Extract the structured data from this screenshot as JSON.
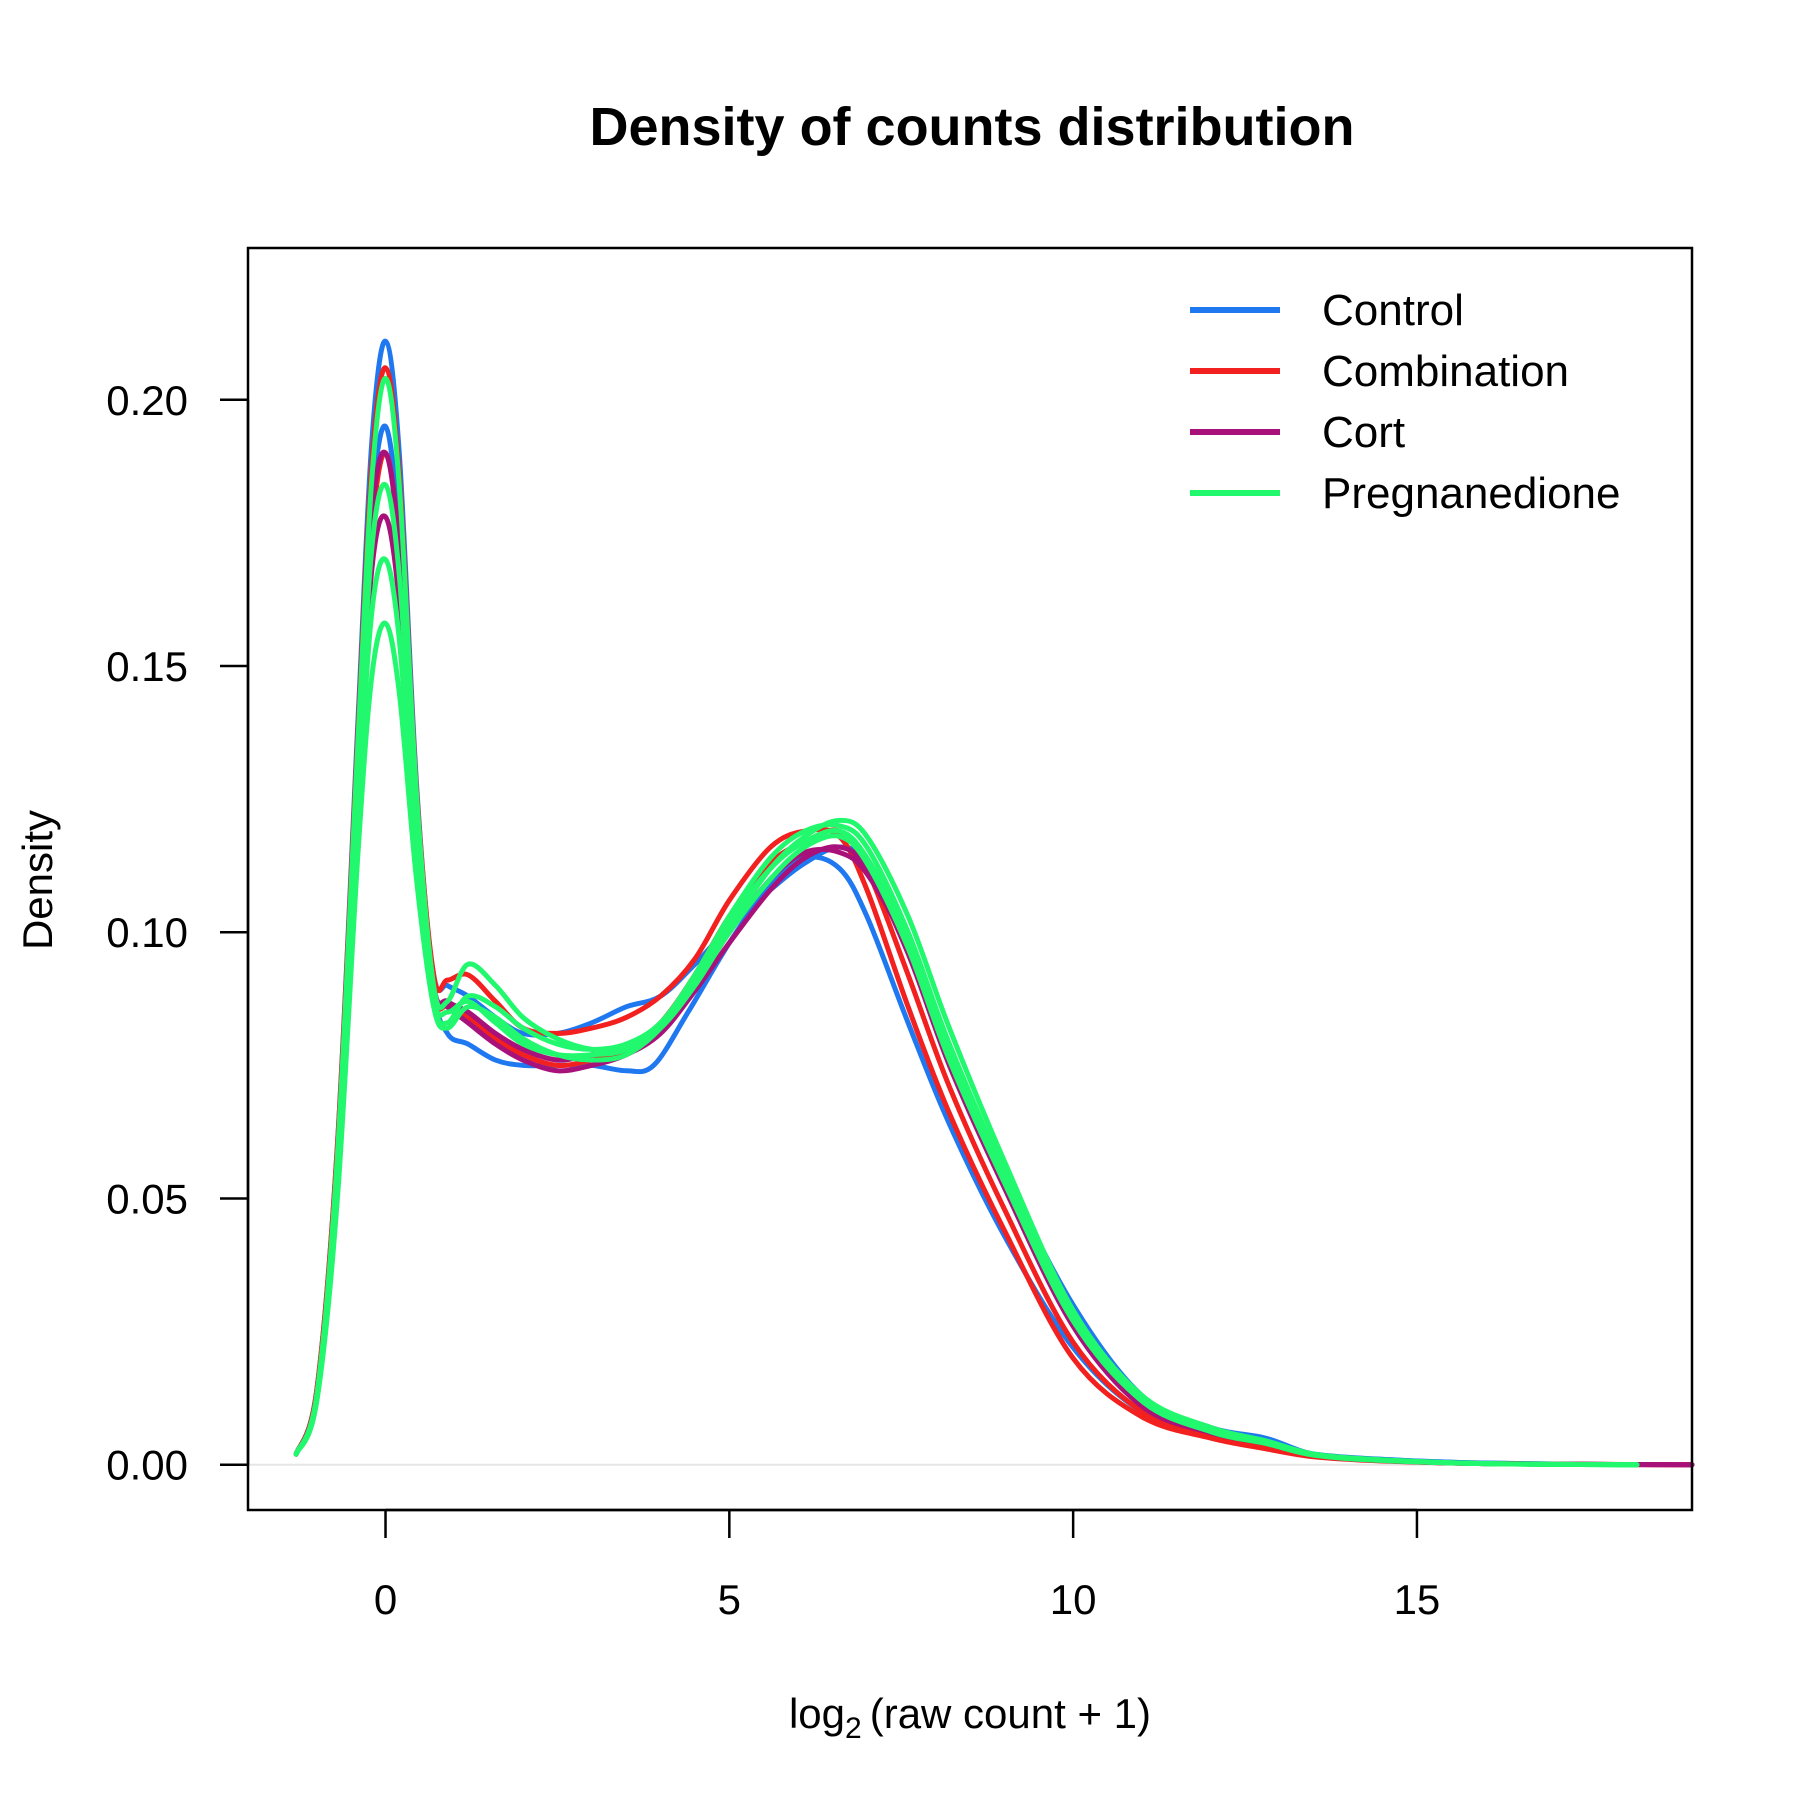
{
  "chart_data": {
    "type": "line",
    "title": "Density of counts distribution",
    "ylabel": "Density",
    "xlabel": {
      "prefix": "log",
      "subscript": "2",
      "expr": "(raw count + 1)"
    },
    "xlim": [
      -2,
      19
    ],
    "ylim": [
      -0.0085,
      0.2285
    ],
    "x_ticks": [
      0,
      5,
      10,
      15
    ],
    "x_tick_labels": [
      "0",
      "5",
      "10",
      "15"
    ],
    "y_ticks": [
      0,
      0.05,
      0.1,
      0.15,
      0.2
    ],
    "y_tick_labels": [
      "0.00",
      "0.05",
      "0.10",
      "0.15",
      "0.20"
    ],
    "grid": false,
    "legend_position": "top-right",
    "legend": [
      {
        "label": "Control",
        "color": "#1F78F0"
      },
      {
        "label": "Combination",
        "color": "#F2201E"
      },
      {
        "label": "Cort",
        "color": "#A8107A"
      },
      {
        "label": "Pregnanedione",
        "color": "#22F86E"
      }
    ],
    "series": [
      {
        "group": "Control",
        "color": "#1F78F0",
        "x": [
          -1.3,
          -1.0,
          -0.7,
          -0.4,
          -0.2,
          0,
          0.2,
          0.45,
          0.7,
          0.9,
          1.2,
          1.6,
          2.0,
          2.5,
          3.0,
          3.5,
          3.9,
          4.4,
          5.0,
          5.6,
          6.1,
          6.6,
          7.0,
          7.6,
          8.2,
          9.0,
          10.0,
          11.0,
          12.0,
          12.8,
          13.5,
          14.5,
          16.0,
          18.2
        ],
        "y": [
          0.002,
          0.014,
          0.06,
          0.14,
          0.192,
          0.211,
          0.19,
          0.128,
          0.09,
          0.081,
          0.079,
          0.076,
          0.075,
          0.075,
          0.075,
          0.074,
          0.075,
          0.085,
          0.098,
          0.109,
          0.114,
          0.112,
          0.103,
          0.083,
          0.064,
          0.043,
          0.022,
          0.01,
          0.006,
          0.004,
          0.002,
          0.001,
          0.0003,
          0
        ]
      },
      {
        "group": "Control",
        "color": "#1F78F0",
        "x": [
          -1.3,
          -1.0,
          -0.7,
          -0.4,
          -0.2,
          0,
          0.2,
          0.45,
          0.7,
          0.9,
          1.2,
          1.6,
          2.0,
          2.5,
          3.0,
          3.5,
          4.0,
          4.5,
          5.0,
          5.6,
          6.1,
          6.6,
          7.0,
          7.6,
          8.2,
          9.0,
          10.0,
          11.0,
          12.0,
          12.8,
          13.5,
          14.5,
          16.0,
          18.2
        ],
        "y": [
          0.002,
          0.013,
          0.058,
          0.135,
          0.18,
          0.195,
          0.175,
          0.124,
          0.092,
          0.09,
          0.088,
          0.084,
          0.081,
          0.081,
          0.083,
          0.086,
          0.088,
          0.094,
          0.101,
          0.108,
          0.113,
          0.116,
          0.113,
          0.098,
          0.078,
          0.055,
          0.03,
          0.013,
          0.007,
          0.005,
          0.002,
          0.001,
          0.0003,
          0
        ]
      },
      {
        "group": "Combination",
        "color": "#F2201E",
        "x": [
          -1.3,
          -1.0,
          -0.7,
          -0.4,
          -0.2,
          0,
          0.2,
          0.45,
          0.7,
          0.9,
          1.2,
          1.6,
          2.0,
          2.5,
          3.0,
          3.5,
          4.0,
          4.5,
          5.0,
          5.6,
          6.1,
          6.6,
          7.0,
          7.6,
          8.2,
          9.0,
          10.0,
          11.0,
          12.0,
          12.8,
          13.5,
          14.5,
          16.0,
          19.0
        ],
        "y": [
          0.002,
          0.014,
          0.06,
          0.138,
          0.188,
          0.206,
          0.186,
          0.127,
          0.092,
          0.091,
          0.092,
          0.087,
          0.082,
          0.081,
          0.082,
          0.084,
          0.088,
          0.095,
          0.106,
          0.116,
          0.119,
          0.118,
          0.108,
          0.086,
          0.066,
          0.044,
          0.02,
          0.009,
          0.005,
          0.003,
          0.0015,
          0.0007,
          0.0002,
          0
        ]
      },
      {
        "group": "Combination",
        "color": "#F2201E",
        "x": [
          -1.3,
          -1.0,
          -0.7,
          -0.4,
          -0.2,
          0,
          0.2,
          0.45,
          0.7,
          0.9,
          1.2,
          1.6,
          2.0,
          2.5,
          3.0,
          3.5,
          4.0,
          4.5,
          5.0,
          5.6,
          6.1,
          6.6,
          7.0,
          7.6,
          8.2,
          9.0,
          10.0,
          11.0,
          12.0,
          12.8,
          13.5,
          14.5,
          16.0,
          19.0
        ],
        "y": [
          0.002,
          0.013,
          0.056,
          0.13,
          0.175,
          0.19,
          0.172,
          0.122,
          0.089,
          0.086,
          0.084,
          0.08,
          0.077,
          0.075,
          0.076,
          0.078,
          0.083,
          0.092,
          0.103,
          0.113,
          0.117,
          0.119,
          0.112,
          0.092,
          0.071,
          0.048,
          0.023,
          0.01,
          0.0055,
          0.0035,
          0.0017,
          0.0008,
          0.0002,
          0
        ]
      },
      {
        "group": "Cort",
        "color": "#A8107A",
        "x": [
          -1.3,
          -1.0,
          -0.7,
          -0.4,
          -0.2,
          0,
          0.2,
          0.45,
          0.7,
          0.9,
          1.2,
          1.6,
          2.0,
          2.5,
          3.0,
          3.5,
          4.0,
          4.5,
          5.0,
          5.6,
          6.1,
          6.6,
          7.0,
          7.6,
          8.2,
          9.0,
          10.0,
          11.0,
          12.0,
          12.8,
          13.5,
          14.5,
          16.0,
          19.0
        ],
        "y": [
          0.002,
          0.013,
          0.055,
          0.128,
          0.168,
          0.178,
          0.162,
          0.118,
          0.089,
          0.086,
          0.083,
          0.079,
          0.076,
          0.074,
          0.075,
          0.077,
          0.081,
          0.089,
          0.098,
          0.108,
          0.114,
          0.116,
          0.112,
          0.096,
          0.075,
          0.052,
          0.026,
          0.011,
          0.006,
          0.004,
          0.0018,
          0.0008,
          0.0002,
          0
        ]
      },
      {
        "group": "Cort",
        "color": "#A8107A",
        "x": [
          -1.3,
          -1.0,
          -0.7,
          -0.4,
          -0.2,
          0,
          0.2,
          0.45,
          0.7,
          0.9,
          1.2,
          1.6,
          2.0,
          2.5,
          3.0,
          3.5,
          4.0,
          4.5,
          5.0,
          5.6,
          6.1,
          6.6,
          7.0,
          7.6,
          8.2,
          9.0,
          10.0,
          11.0,
          12.0,
          12.8,
          13.5,
          14.5,
          16.0,
          19.0
        ],
        "y": [
          0.002,
          0.013,
          0.057,
          0.132,
          0.178,
          0.19,
          0.172,
          0.122,
          0.09,
          0.087,
          0.085,
          0.081,
          0.078,
          0.076,
          0.077,
          0.078,
          0.082,
          0.09,
          0.1,
          0.11,
          0.115,
          0.115,
          0.111,
          0.097,
          0.077,
          0.053,
          0.027,
          0.012,
          0.0062,
          0.0042,
          0.0019,
          0.0009,
          0.0002,
          0
        ]
      },
      {
        "group": "Pregnanedione",
        "color": "#22F86E",
        "x": [
          -1.3,
          -1.0,
          -0.7,
          -0.4,
          -0.2,
          0,
          0.2,
          0.45,
          0.7,
          0.9,
          1.2,
          1.6,
          2.0,
          2.5,
          3.0,
          3.5,
          4.0,
          4.5,
          5.0,
          5.6,
          6.1,
          6.6,
          7.0,
          7.6,
          8.2,
          9.0,
          10.0,
          11.0,
          12.0,
          12.8,
          13.5,
          14.5,
          16.0,
          18.2
        ],
        "y": [
          0.002,
          0.012,
          0.05,
          0.115,
          0.148,
          0.158,
          0.145,
          0.11,
          0.086,
          0.082,
          0.086,
          0.084,
          0.08,
          0.077,
          0.076,
          0.077,
          0.082,
          0.091,
          0.101,
          0.112,
          0.118,
          0.121,
          0.118,
          0.103,
          0.082,
          0.057,
          0.029,
          0.013,
          0.007,
          0.0045,
          0.002,
          0.0009,
          0.0002,
          0
        ]
      },
      {
        "group": "Pregnanedione",
        "color": "#22F86E",
        "x": [
          -1.3,
          -1.0,
          -0.7,
          -0.4,
          -0.2,
          0,
          0.2,
          0.45,
          0.7,
          0.9,
          1.2,
          1.6,
          2.0,
          2.5,
          3.0,
          3.5,
          4.0,
          4.5,
          5.0,
          5.6,
          6.1,
          6.6,
          7.0,
          7.6,
          8.2,
          9.0,
          10.0,
          11.0,
          12.0,
          12.8,
          13.5,
          14.5,
          16.0,
          18.2
        ],
        "y": [
          0.002,
          0.012,
          0.053,
          0.122,
          0.16,
          0.17,
          0.155,
          0.114,
          0.087,
          0.083,
          0.088,
          0.086,
          0.082,
          0.079,
          0.078,
          0.079,
          0.083,
          0.092,
          0.103,
          0.114,
          0.119,
          0.12,
          0.116,
          0.1,
          0.079,
          0.055,
          0.028,
          0.012,
          0.0065,
          0.0043,
          0.0019,
          0.0009,
          0.0002,
          0
        ]
      },
      {
        "group": "Pregnanedione",
        "color": "#22F86E",
        "x": [
          -1.3,
          -1.0,
          -0.7,
          -0.4,
          -0.2,
          0,
          0.2,
          0.45,
          0.7,
          0.9,
          1.2,
          1.6,
          2.0,
          2.5,
          3.0,
          3.5,
          4.0,
          4.5,
          5.0,
          5.6,
          6.1,
          6.6,
          7.0,
          7.6,
          8.2,
          9.0,
          10.0,
          11.0,
          12.0,
          12.8,
          13.5,
          14.5,
          16.0,
          18.2
        ],
        "y": [
          0.002,
          0.013,
          0.058,
          0.136,
          0.185,
          0.204,
          0.184,
          0.126,
          0.09,
          0.087,
          0.094,
          0.09,
          0.084,
          0.08,
          0.078,
          0.078,
          0.082,
          0.09,
          0.1,
          0.11,
          0.116,
          0.118,
          0.113,
          0.097,
          0.076,
          0.053,
          0.027,
          0.012,
          0.0062,
          0.004,
          0.0018,
          0.0008,
          0.0002,
          0
        ]
      },
      {
        "group": "Pregnanedione",
        "color": "#22F86E",
        "x": [
          -1.3,
          -1.0,
          -0.7,
          -0.4,
          -0.2,
          0,
          0.2,
          0.45,
          0.7,
          0.9,
          1.2,
          1.6,
          2.0,
          2.5,
          3.0,
          3.5,
          4.0,
          4.5,
          5.0,
          5.6,
          6.1,
          6.6,
          7.0,
          7.6,
          8.2,
          9.0,
          10.0,
          11.0,
          12.0,
          12.8,
          13.5,
          14.5,
          16.0,
          18.2
        ],
        "y": [
          0.002,
          0.013,
          0.056,
          0.13,
          0.172,
          0.184,
          0.167,
          0.12,
          0.088,
          0.085,
          0.087,
          0.083,
          0.079,
          0.077,
          0.077,
          0.078,
          0.083,
          0.091,
          0.102,
          0.112,
          0.117,
          0.119,
          0.114,
          0.099,
          0.078,
          0.054,
          0.028,
          0.012,
          0.0063,
          0.0042,
          0.0019,
          0.0009,
          0.0002,
          0
        ]
      }
    ]
  }
}
